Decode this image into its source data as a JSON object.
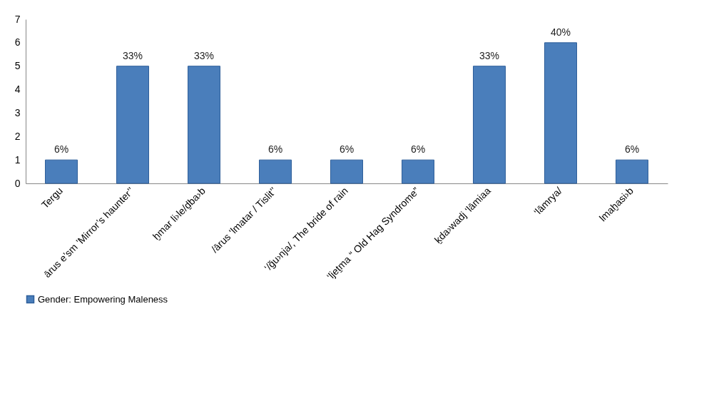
{
  "chart_data": {
    "type": "bar",
    "categories": [
      "Tergu",
      "ārus e’sm ’Mirror’s haunter’’",
      "ḫmar li›le/ḏba›b",
      "/ārus ‘lmatar / Tislit’’",
      "‘/ğu›nja/, The bride of rain",
      "‘ljeṯma “ Old Hag Syndrome”",
      "ḵda›wadj ‘lāmiaa",
      "‘lāmrya/",
      "lmaḫasi›b"
    ],
    "series": [
      {
        "name": "Gender: Empowering Maleness",
        "color": "#4a7ebb",
        "values": [
          1,
          5,
          5,
          1,
          1,
          1,
          5,
          6,
          1
        ]
      }
    ],
    "value_labels": [
      "6%",
      "33%",
      "33%",
      "6%",
      "6%",
      "6%",
      "33%",
      "40%",
      "6%"
    ],
    "ylim": [
      0,
      7
    ],
    "yticks": [
      0,
      1,
      2,
      3,
      4,
      5,
      6,
      7
    ],
    "grid": false,
    "legend": "bottom"
  }
}
